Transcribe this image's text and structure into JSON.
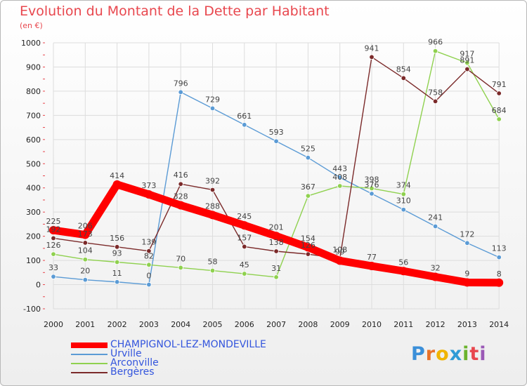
{
  "header": {
    "title": "Evolution du Montant de la Dette par Habitant",
    "subtitle": "(en €)"
  },
  "logo": {
    "text": "Proxiti",
    "letters": [
      "P",
      "r",
      "o",
      "x",
      "i",
      "t",
      "i"
    ],
    "colors": [
      "#3b8fd9",
      "#e8722a",
      "#f0b400",
      "#2e9bd6",
      "#6bb32e",
      "#e8474e",
      "#9b59b6"
    ]
  },
  "colors": {
    "title": "#e8474e",
    "legend_text": "#3355dd",
    "grid": "#dddddd",
    "axis_ticks": "#e8474e"
  },
  "chart_data": {
    "type": "line",
    "title": "Evolution du Montant de la Dette par Habitant",
    "subtitle": "(en €)",
    "xlabel": "",
    "ylabel": "",
    "ylim": [
      -100,
      1000
    ],
    "yticks": [
      -100,
      0,
      100,
      200,
      300,
      400,
      500,
      600,
      700,
      800,
      900,
      1000
    ],
    "grid": true,
    "legend_position": "bottom-left",
    "categories": [
      "2000",
      "2001",
      "2002",
      "2003",
      "2004",
      "2005",
      "2006",
      "2007",
      "2008",
      "2009",
      "2010",
      "2011",
      "2012",
      "2013",
      "2014"
    ],
    "series": [
      {
        "name": "CHAMPIGNOL-LEZ-MONDEVILLE",
        "color": "#ff0000",
        "values": [
          225,
          206,
          414,
          373,
          328,
          288,
          245,
          201,
          154,
          99,
          77,
          56,
          32,
          9,
          8
        ]
      },
      {
        "name": "Urville",
        "color": "#5b9bd5",
        "values": [
          33,
          20,
          11,
          0,
          796,
          729,
          661,
          593,
          525,
          443,
          376,
          310,
          241,
          172,
          113
        ]
      },
      {
        "name": "Arconville",
        "color": "#8fd14f",
        "values": [
          126,
          104,
          93,
          82,
          70,
          58,
          45,
          31,
          367,
          408,
          398,
          374,
          966,
          917,
          684
        ]
      },
      {
        "name": "Bergères",
        "color": "#7b2a2a",
        "values": [
          192,
          173,
          156,
          139,
          416,
          392,
          157,
          138,
          126,
          108,
          941,
          854,
          758,
          891,
          791
        ]
      }
    ]
  }
}
